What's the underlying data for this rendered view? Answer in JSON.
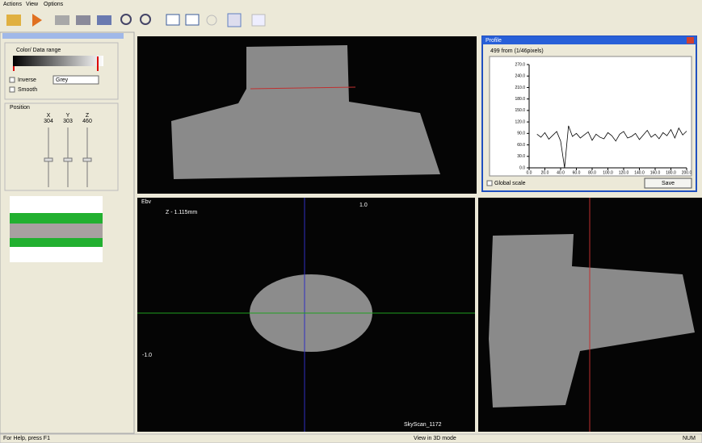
{
  "menu": [
    "Actions",
    "View",
    "Options"
  ],
  "left_panel": {
    "color_range": "Color/ Data range",
    "inverse": "Inverse",
    "palette": "Grey",
    "smooth": "Smooth",
    "position": "Position",
    "axes": [
      "X",
      "Y",
      "Z"
    ],
    "coords": [
      "304",
      "303",
      "460"
    ]
  },
  "viewports": {
    "z_label": "Z - 1.115mm",
    "top_mark": "1.0",
    "side_mark": "-1.0",
    "corner": "Ebv",
    "scanner": "SkyScan_1172"
  },
  "profile_window": {
    "title": "Profile",
    "subtitle": "499 from (1/46pixels)",
    "global_scale": "Global scale",
    "save": "Save"
  },
  "chart_data": {
    "type": "line",
    "color": "#000000",
    "ylim": [
      0,
      270
    ],
    "yticks": [
      {
        "value": 0,
        "label": "0.0"
      },
      {
        "value": 30,
        "label": "30.0"
      },
      {
        "value": 60,
        "label": "60.0"
      },
      {
        "value": 90,
        "label": "90.0"
      },
      {
        "value": 120,
        "label": "120.0"
      },
      {
        "value": 150,
        "label": "150.0"
      },
      {
        "value": 180,
        "label": "180.0"
      },
      {
        "value": 210,
        "label": "210.0"
      },
      {
        "value": 240,
        "label": "240.0"
      },
      {
        "value": 270,
        "label": "270.0"
      }
    ],
    "xlim": [
      0,
      200
    ],
    "xticks": [
      {
        "value": 0,
        "label": "0.0"
      },
      {
        "value": 20,
        "label": "20.0"
      },
      {
        "value": 40,
        "label": "40.0"
      },
      {
        "value": 60,
        "label": "60.0"
      },
      {
        "value": 80,
        "label": "80.0"
      },
      {
        "value": 100,
        "label": "100.0"
      },
      {
        "value": 120,
        "label": "120.0"
      },
      {
        "value": 140,
        "label": "140.0"
      },
      {
        "value": 160,
        "label": "160.0"
      },
      {
        "value": 180,
        "label": "180.0"
      },
      {
        "value": 200,
        "label": "200.0"
      }
    ],
    "x": [
      10,
      15,
      20,
      25,
      30,
      35,
      40,
      45,
      50,
      55,
      60,
      65,
      70,
      75,
      80,
      85,
      90,
      95,
      100,
      105,
      110,
      115,
      120,
      125,
      130,
      135,
      140,
      145,
      150,
      155,
      160,
      165,
      170,
      175,
      180,
      185,
      190,
      195,
      200
    ],
    "values": [
      88,
      80,
      92,
      75,
      85,
      95,
      70,
      0,
      110,
      82,
      90,
      78,
      86,
      94,
      72,
      88,
      80,
      76,
      92,
      84,
      70,
      88,
      95,
      78,
      82,
      90,
      74,
      86,
      98,
      80,
      88,
      76,
      92,
      84,
      100,
      78,
      104,
      86,
      96
    ]
  },
  "status_bar": [
    "For Help, press F1",
    "View in 3D mode",
    "NUM"
  ]
}
